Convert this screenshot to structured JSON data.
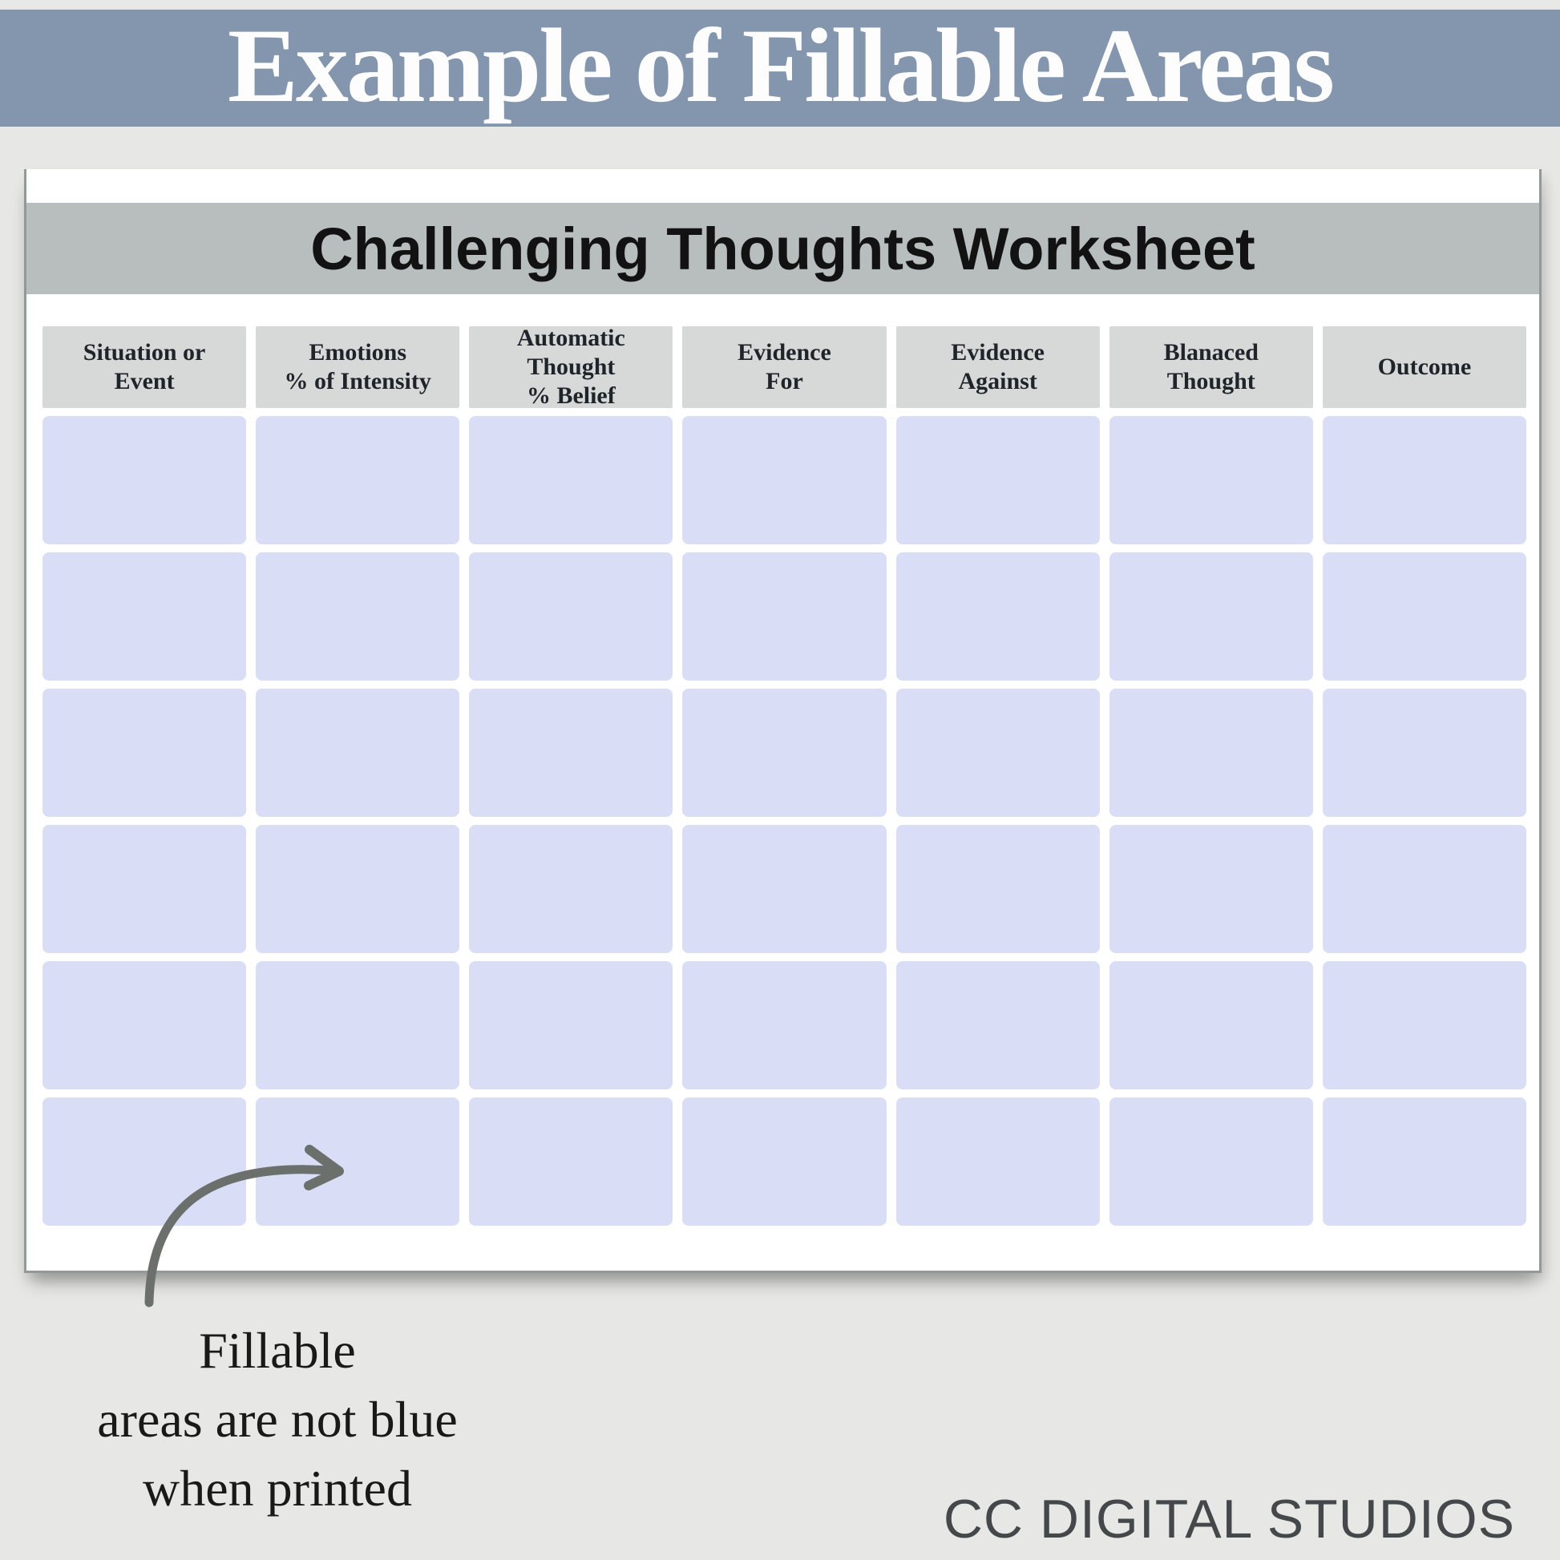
{
  "banner": {
    "title": "Example of Fillable Areas"
  },
  "worksheet": {
    "title": "Challenging Thoughts Worksheet",
    "columns": [
      "Situation or\nEvent",
      "Emotions\n% of Intensity",
      "Automatic\nThought\n% Belief",
      "Evidence\nFor",
      "Evidence\nAgainst",
      "Blanaced\nThought",
      "Outcome"
    ],
    "row_count": 6,
    "fillable_cell_value": ""
  },
  "annotation": {
    "lines": [
      "Fillable",
      "areas are not blue",
      "when printed"
    ]
  },
  "footer": {
    "brand": "CC DIGITAL STUDIOS"
  },
  "icons": {
    "arrow": "curved-arrow-icon"
  },
  "colors": {
    "canvas_bg": "#e7e7e5",
    "banner_bg": "#8495ae",
    "banner_text": "#fdfdfd",
    "page_bg": "#ffffff",
    "page_edge": "#939899",
    "titlebar_bg": "#b8bdbd",
    "titlebar_text": "#121212",
    "header_cell_bg": "#d6d9d7",
    "header_cell_text": "#1f242b",
    "cell_bg": "#d9ddf6",
    "arrow": "#6c706d",
    "caption_text": "#191919",
    "footer_text": "#45484a"
  }
}
